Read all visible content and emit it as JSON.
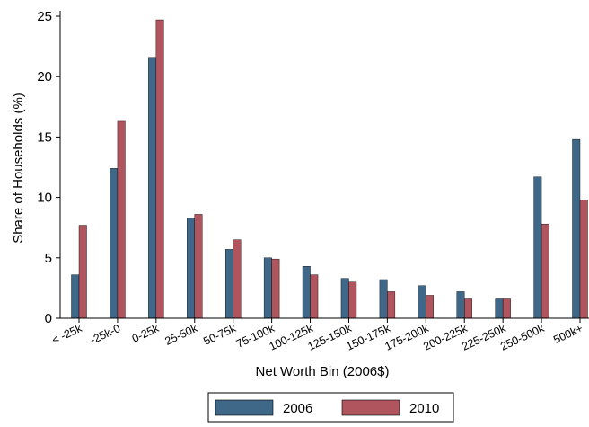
{
  "chart_data": {
    "type": "bar",
    "title": "",
    "xlabel": "Net Worth Bin (2006$)",
    "ylabel": "Share of Households (%)",
    "ylim": [
      0,
      25
    ],
    "yticks": [
      0,
      5,
      10,
      15,
      20,
      25
    ],
    "grid": false,
    "legend_position": "bottom",
    "categories": [
      "< -25k",
      "-25k-0",
      "0-25k",
      "25-50k",
      "50-75k",
      "75-100k",
      "100-125k",
      "125-150k",
      "150-175k",
      "175-200k",
      "200-225k",
      "225-250k",
      "250-500k",
      "500k+"
    ],
    "series": [
      {
        "name": "2006",
        "color": "#3f6788",
        "values": [
          3.6,
          12.4,
          21.6,
          8.3,
          5.7,
          5.0,
          4.3,
          3.3,
          3.2,
          2.7,
          2.2,
          1.6,
          11.7,
          14.8
        ]
      },
      {
        "name": "2010",
        "color": "#b0545e",
        "values": [
          7.7,
          16.3,
          24.7,
          8.6,
          6.5,
          4.9,
          3.6,
          3.0,
          2.2,
          1.9,
          1.6,
          1.6,
          7.8,
          9.8
        ]
      }
    ]
  }
}
